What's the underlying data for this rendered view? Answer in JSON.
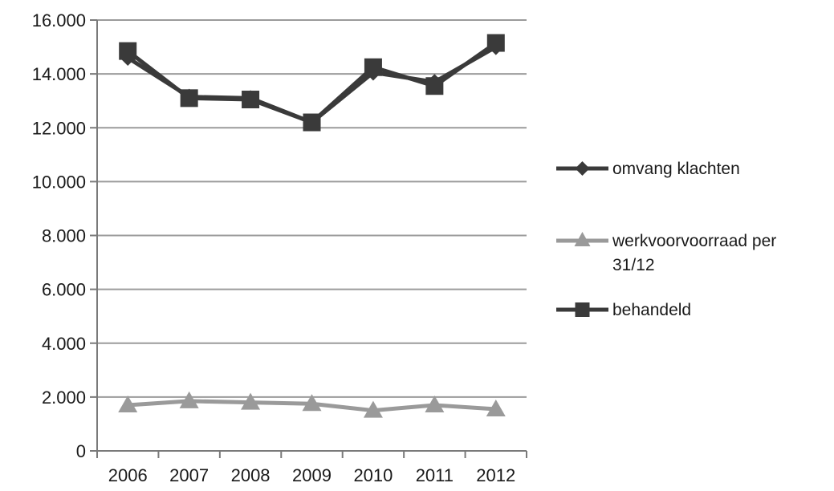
{
  "chart_data": {
    "type": "line",
    "categories": [
      "2006",
      "2007",
      "2008",
      "2009",
      "2010",
      "2011",
      "2012"
    ],
    "y_tick_labels": [
      "0",
      "2.000",
      "4.000",
      "6.000",
      "8.000",
      "10.000",
      "12.000",
      "14.000",
      "16.000"
    ],
    "y_ticks": [
      0,
      2000,
      4000,
      6000,
      8000,
      10000,
      12000,
      14000,
      16000
    ],
    "ylim": [
      0,
      16000
    ],
    "grid": "horizontal",
    "legend_position": "right",
    "series": [
      {
        "name": "omvang klachten",
        "marker": "diamond",
        "color": "#3a3a3a",
        "values": [
          14600,
          13150,
          13100,
          12200,
          14050,
          13700,
          15000
        ]
      },
      {
        "name": "werkvoorvoorraad per 31/12",
        "marker": "triangle",
        "color": "#9a9a9a",
        "values": [
          1700,
          1850,
          1800,
          1750,
          1500,
          1700,
          1550
        ]
      },
      {
        "name": "behandeld",
        "marker": "square",
        "color": "#3a3a3a",
        "values": [
          14850,
          13100,
          13050,
          12200,
          14250,
          13550,
          15150
        ]
      }
    ]
  }
}
